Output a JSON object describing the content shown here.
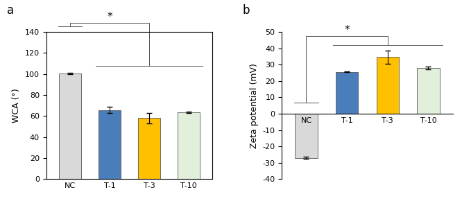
{
  "chart_data": [
    {
      "type": "bar",
      "title": "a",
      "categories": [
        "NC",
        "T-1",
        "T-3",
        "T-10"
      ],
      "values": [
        100.5,
        65.5,
        58,
        63.5
      ],
      "errors": [
        0.8,
        3,
        5,
        0.6
      ],
      "colors": [
        "#d9d9d9",
        "#4a7ebb",
        "#ffc000",
        "#e2efda"
      ],
      "y_label": "WCA (°)",
      "ylim": [
        0,
        140
      ],
      "yticks": [
        0,
        20,
        40,
        60,
        80,
        100,
        120,
        140
      ],
      "annotations": [
        "*"
      ]
    },
    {
      "type": "bar",
      "title": "b",
      "categories": [
        "NC",
        "T-1",
        "T-3",
        "T-10"
      ],
      "values": [
        -27,
        25.5,
        34.5,
        28
      ],
      "errors": [
        0.5,
        0.3,
        4,
        0.8
      ],
      "colors": [
        "#d9d9d9",
        "#4a7ebb",
        "#ffc000",
        "#e2efda"
      ],
      "y_label": "Zeta potential (mV)",
      "ylim": [
        -40,
        50
      ],
      "yticks": [
        -40,
        -30,
        -20,
        -10,
        0,
        10,
        20,
        30,
        40,
        50
      ],
      "annotations": [
        "*"
      ]
    }
  ]
}
